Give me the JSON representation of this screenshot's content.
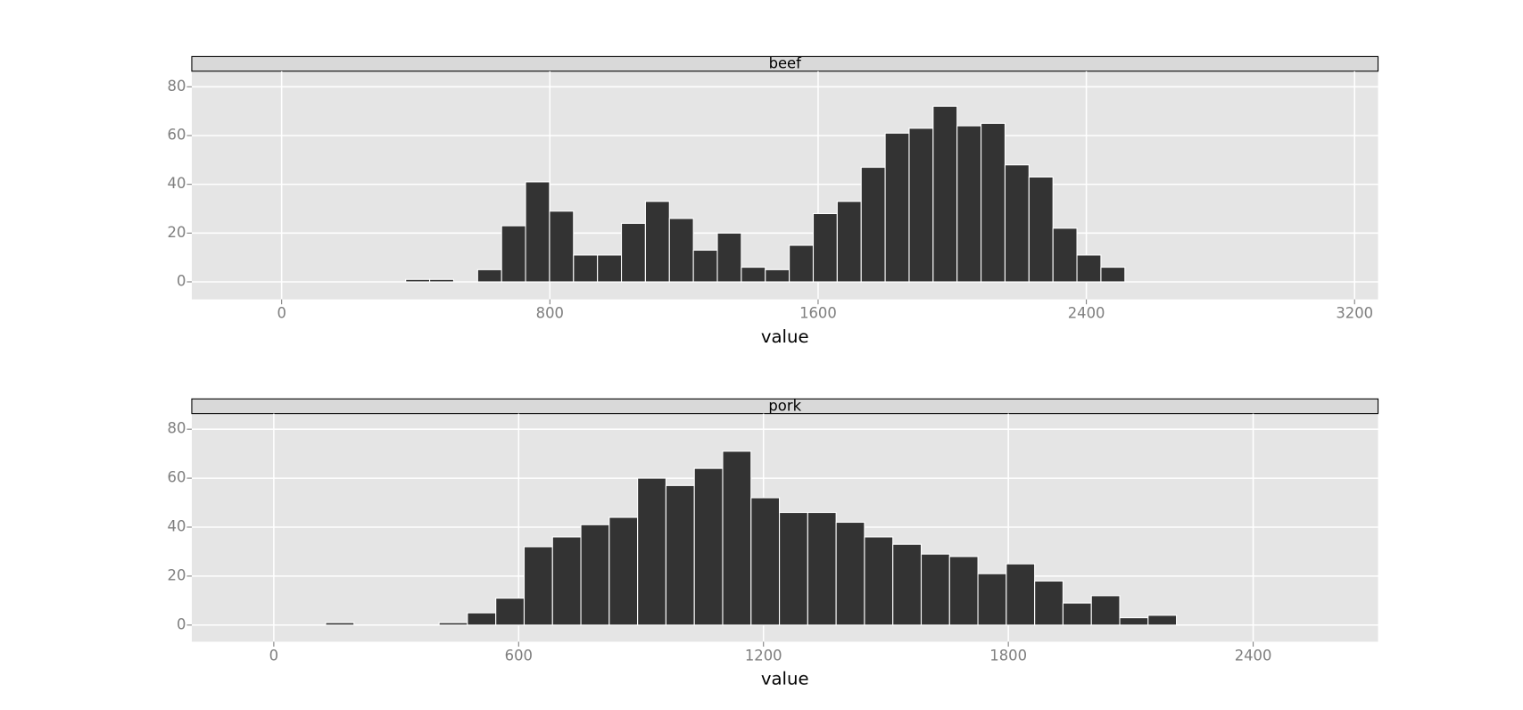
{
  "chart_data": [
    {
      "type": "histogram",
      "title": "beef",
      "x_label": "value",
      "color": "#333333",
      "bins": [
        370,
        441.5,
        513,
        584.5,
        656,
        727.5,
        799,
        870.5,
        942,
        1013.5,
        1085,
        1156.5,
        1228,
        1299.5,
        1371,
        1442.5,
        1514,
        1585.5,
        1657,
        1728.5,
        1800,
        1871.5,
        1943,
        2014.5,
        2086,
        2157.5,
        2229,
        2300.5,
        2372,
        2443.5,
        2515
      ],
      "values": [
        1,
        1,
        0,
        5,
        23,
        41,
        29,
        11,
        11,
        24,
        33,
        26,
        13,
        20,
        6,
        5,
        15,
        28,
        33,
        47,
        61,
        63,
        72,
        64,
        65,
        48,
        43,
        22,
        11,
        6
      ],
      "xlim": [
        -268,
        3270
      ],
      "ylim": [
        -7.2,
        86.4
      ],
      "xticks": [
        0,
        800,
        1600,
        2400,
        3200
      ],
      "yticks": [
        0,
        20,
        40,
        60,
        80
      ],
      "grid": true
    },
    {
      "type": "histogram",
      "title": "pork",
      "x_label": "value",
      "color": "#333333",
      "bins": [
        127,
        196.5,
        266,
        335.5,
        405,
        474.5,
        544,
        613.5,
        683,
        752.5,
        822,
        891.5,
        961,
        1030.5,
        1100,
        1169.5,
        1239,
        1308.5,
        1378,
        1447.5,
        1517,
        1586.5,
        1656,
        1725.5,
        1795,
        1864.5,
        1934,
        2003.5,
        2073,
        2142.5,
        2212
      ],
      "values": [
        1,
        0,
        0,
        0,
        1,
        5,
        11,
        32,
        36,
        41,
        44,
        60,
        57,
        64,
        71,
        52,
        46,
        46,
        42,
        36,
        33,
        29,
        28,
        21,
        25,
        18,
        9,
        12,
        3,
        4
      ],
      "xlim": [
        -201,
        2706
      ],
      "ylim": [
        -6.8,
        86.4
      ],
      "xticks": [
        0,
        600,
        1200,
        1800,
        2400
      ],
      "yticks": [
        0,
        20,
        40,
        60,
        80
      ],
      "grid": true
    }
  ]
}
